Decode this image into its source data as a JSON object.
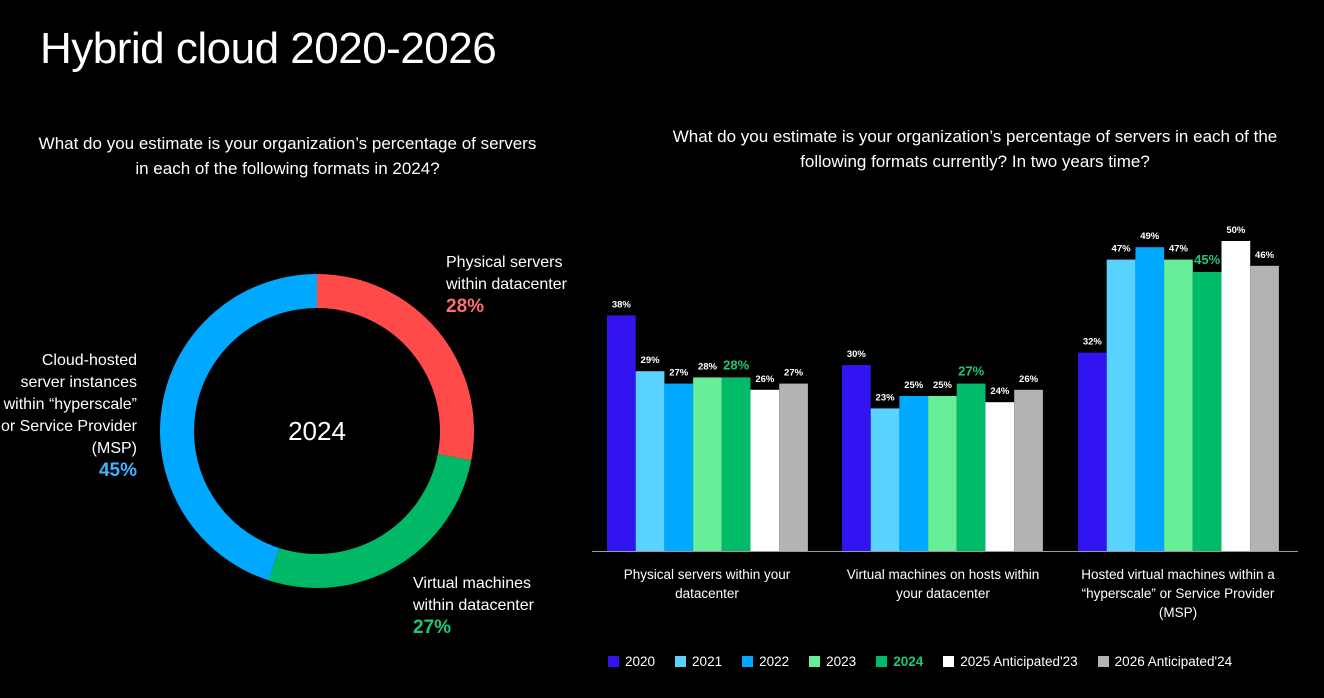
{
  "page": {
    "title": "Hybrid cloud 2020-2026"
  },
  "chart_data": [
    {
      "type": "pie",
      "variant": "donut",
      "title": "What do you estimate is your organization’s percentage of servers in each of the following formats in 2024?",
      "center_label": "2024",
      "slices": [
        {
          "label_lines": [
            "Physical servers",
            "within datacenter"
          ],
          "value": 28,
          "value_label": "28%",
          "color": "#ff4a4a",
          "label_color": "#ff6e6e"
        },
        {
          "label_lines": [
            "Virtual machines",
            "within datacenter"
          ],
          "value": 27,
          "value_label": "27%",
          "color": "#00b866",
          "label_color": "#1ec87a"
        },
        {
          "label_lines": [
            "Cloud-hosted",
            "server instances",
            "within “hyperscale”",
            "or Service Provider",
            "(MSP)"
          ],
          "value": 45,
          "value_label": "45%",
          "color": "#00a8ff",
          "label_color": "#3fb4ff"
        }
      ]
    },
    {
      "type": "bar",
      "title": "What do you estimate is your organization’s percentage of servers in each of the following formats currently? In two years time?",
      "categories": [
        [
          "Physical servers within your",
          "datacenter"
        ],
        [
          "Virtual machines on hosts within",
          "your datacenter"
        ],
        [
          "Hosted virtual machines within a",
          "“hyperscale” or Service Provider",
          "(MSP)"
        ]
      ],
      "ylim": [
        0,
        50
      ],
      "highlight_series": "2024",
      "highlight_label_color": "#1ec87a",
      "series": [
        {
          "name": "2020",
          "color": "#3214f0",
          "values": [
            38,
            30,
            32
          ],
          "labels": [
            "38%",
            "30%",
            "32%"
          ]
        },
        {
          "name": "2021",
          "color": "#5ad2ff",
          "values": [
            29,
            23,
            47
          ],
          "labels": [
            "29%",
            "23%",
            "47%"
          ]
        },
        {
          "name": "2022",
          "color": "#00a8ff",
          "values": [
            27,
            25,
            49
          ],
          "labels": [
            "27%",
            "25%",
            "49%"
          ]
        },
        {
          "name": "2023",
          "color": "#66ee99",
          "values": [
            28,
            25,
            47
          ],
          "labels": [
            "28%",
            "25%",
            "47%"
          ]
        },
        {
          "name": "2024",
          "color": "#00bb6a",
          "values": [
            28,
            27,
            45
          ],
          "labels": [
            "28%",
            "27%",
            "45%"
          ]
        },
        {
          "name": "2025 Anticipated'23",
          "color": "#ffffff",
          "values": [
            26,
            24,
            50
          ],
          "labels": [
            "26%",
            "24%",
            "50%"
          ]
        },
        {
          "name": "2026 Anticipated'24",
          "color": "#b3b3b3",
          "values": [
            27,
            26,
            46
          ],
          "labels": [
            "27%",
            "26%",
            "46%"
          ]
        }
      ]
    }
  ]
}
